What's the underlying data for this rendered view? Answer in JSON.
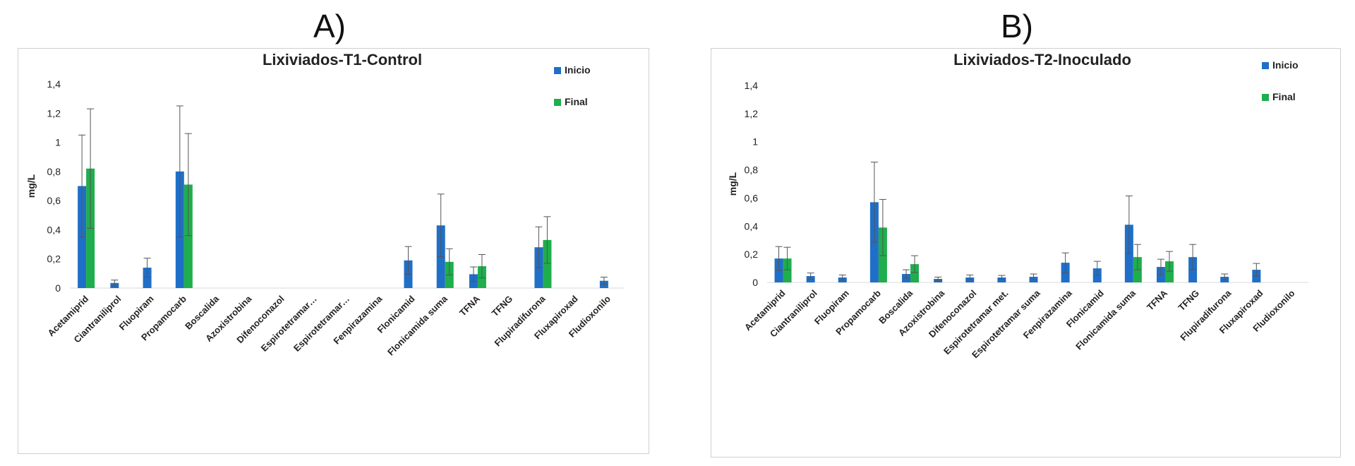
{
  "panels": [
    {
      "label": "A)"
    },
    {
      "label": "B)"
    }
  ],
  "colors": {
    "inicio": "#1f6fc8",
    "final": "#1fae4c",
    "error": "#555555",
    "frame": "#d0d0d0"
  },
  "chart_data": [
    {
      "type": "bar",
      "title": "Lixiviados-T1-Control",
      "ylabel": "mg/L",
      "xlabel": "",
      "ylim": [
        0,
        1.4
      ],
      "yticks": [
        "0",
        "0,2",
        "0,4",
        "0,6",
        "0,8",
        "1",
        "1,2",
        "1,4"
      ],
      "grid": false,
      "legend_position": "top-right",
      "categories": [
        "Acetamiprid",
        "Ciantraniliprol",
        "Fluopiram",
        "Propamocarb",
        "Boscalida",
        "Azoxistrobina",
        "Difenoconazol",
        "Espirotetramar…",
        "Espirotetramar…",
        "Fenpirazamina",
        "Flonicamid",
        "Flonicamida suma",
        "TFNA",
        "TFNG",
        "Flupiradifurona",
        "Fluxapiroxad",
        "Fludioxonilo"
      ],
      "series": [
        {
          "name": "Inicio",
          "values": [
            0.7,
            0.035,
            0.14,
            0.8,
            null,
            null,
            null,
            null,
            null,
            null,
            0.19,
            0.43,
            0.095,
            null,
            0.28,
            null,
            0.05
          ],
          "errors": [
            0.35,
            0.02,
            0.065,
            0.45,
            null,
            null,
            null,
            null,
            null,
            null,
            0.095,
            0.215,
            0.05,
            null,
            0.14,
            null,
            0.025
          ]
        },
        {
          "name": "Final",
          "values": [
            0.82,
            null,
            null,
            0.71,
            null,
            null,
            null,
            null,
            null,
            null,
            null,
            0.18,
            0.15,
            null,
            0.33,
            null,
            null
          ],
          "errors": [
            0.41,
            null,
            null,
            0.35,
            null,
            null,
            null,
            null,
            null,
            null,
            null,
            0.09,
            0.08,
            null,
            0.16,
            null,
            null
          ]
        }
      ]
    },
    {
      "type": "bar",
      "title": "Lixiviados-T2-Inoculado",
      "ylabel": "mg/L",
      "xlabel": "",
      "ylim": [
        0,
        1.4
      ],
      "yticks": [
        "0",
        "0,2",
        "0,4",
        "0,6",
        "0,8",
        "1",
        "1,2",
        "1,4"
      ],
      "grid": false,
      "legend_position": "top-right",
      "categories": [
        "Acetamiprid",
        "Ciantraniliprol",
        "Fluopiram",
        "Propamocarb",
        "Boscalida",
        "Azoxistrobina",
        "Difenoconazol",
        "Espirotetramar met.",
        "Espirotetramar suma",
        "Fenpirazamina",
        "Flonicamid",
        "Flonicamida suma",
        "TFNA",
        "TFNG",
        "Flupiradifurona",
        "Fluxapiroxad",
        "Fludioxonilo"
      ],
      "series": [
        {
          "name": "Inicio",
          "values": [
            0.17,
            0.045,
            0.035,
            0.57,
            0.06,
            0.025,
            0.035,
            0.035,
            0.04,
            0.14,
            0.1,
            0.41,
            0.11,
            0.18,
            0.04,
            0.09,
            null
          ],
          "errors": [
            0.085,
            0.022,
            0.018,
            0.285,
            0.03,
            0.013,
            0.018,
            0.015,
            0.02,
            0.07,
            0.05,
            0.205,
            0.055,
            0.09,
            0.02,
            0.045,
            null
          ]
        },
        {
          "name": "Final",
          "values": [
            0.17,
            null,
            null,
            0.39,
            0.13,
            null,
            null,
            null,
            null,
            null,
            null,
            0.18,
            0.15,
            null,
            null,
            null,
            null
          ],
          "errors": [
            0.08,
            null,
            null,
            0.2,
            0.06,
            null,
            null,
            null,
            null,
            null,
            null,
            0.09,
            0.07,
            null,
            null,
            null,
            null
          ]
        }
      ]
    }
  ]
}
